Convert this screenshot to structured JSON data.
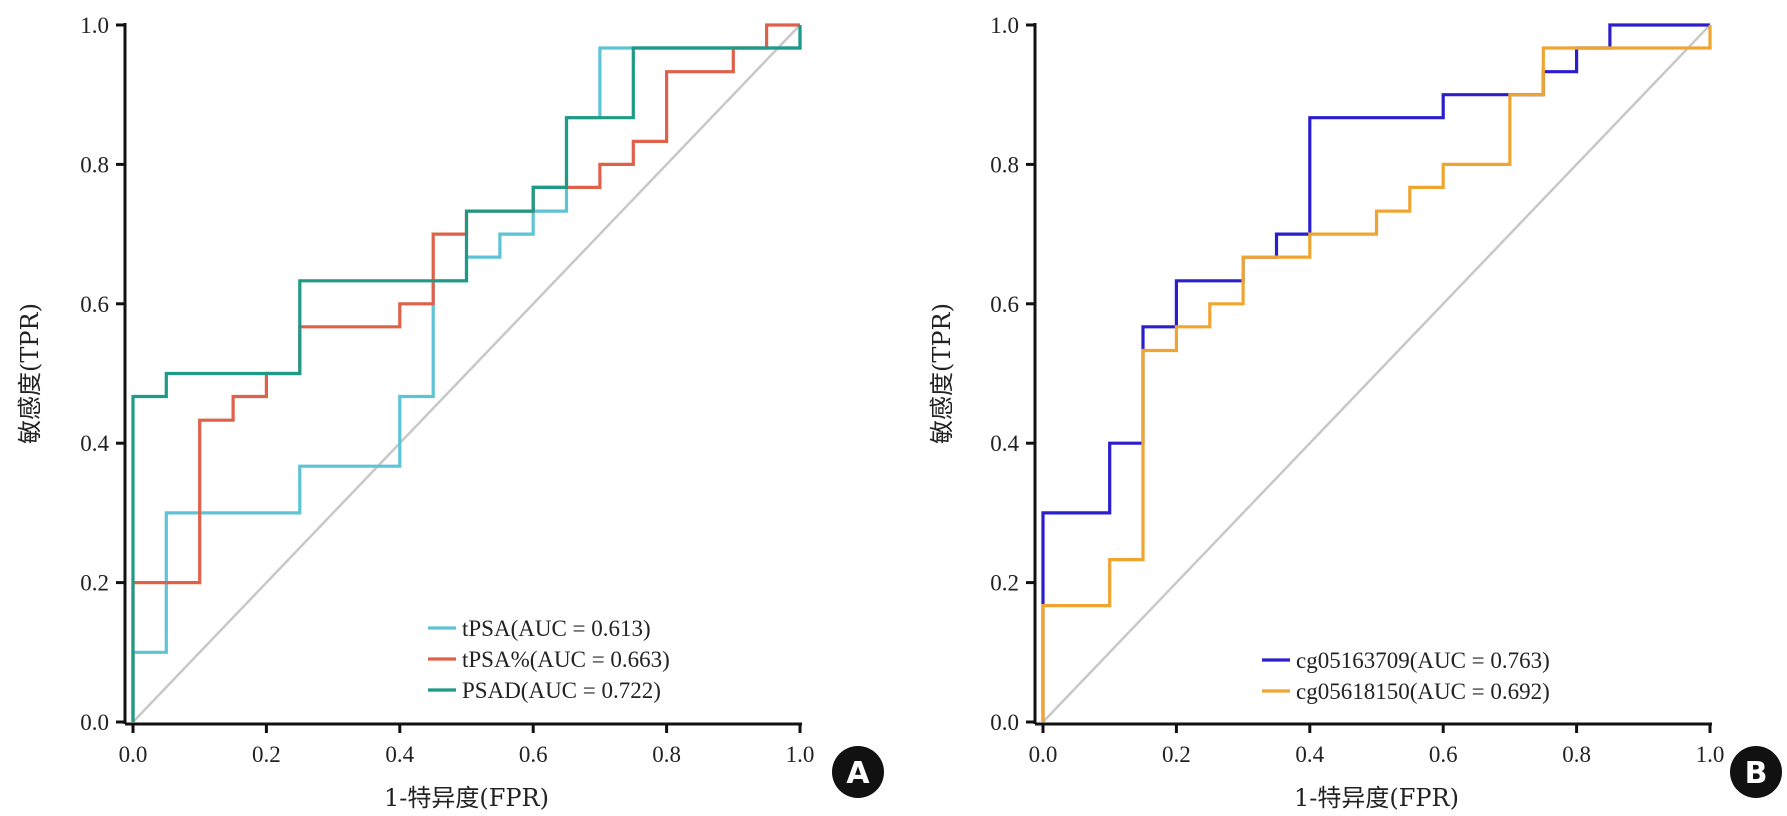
{
  "chart_data": [
    {
      "type": "line",
      "panel_label": "A",
      "xlabel": "1-特异度(FPR)",
      "ylabel": "敏感度(TPR)",
      "xlim": [
        0,
        1
      ],
      "ylim": [
        0,
        1
      ],
      "xticks": [
        "0.0",
        "0.2",
        "0.4",
        "0.6",
        "0.8",
        "1.0"
      ],
      "yticks": [
        "0.0",
        "0.2",
        "0.4",
        "0.6",
        "0.8",
        "1.0"
      ],
      "grid": false,
      "legend_position": "bottom-right",
      "reference_line": {
        "color": "#c8c8c8",
        "points": [
          [
            0,
            0
          ],
          [
            1,
            1
          ]
        ]
      },
      "series": [
        {
          "name": "tPSA(AUC = 0.613)",
          "color": "#5fc3d6",
          "points": [
            [
              0,
              0
            ],
            [
              0,
              0.1
            ],
            [
              0.05,
              0.1
            ],
            [
              0.05,
              0.3
            ],
            [
              0.25,
              0.3
            ],
            [
              0.25,
              0.367
            ],
            [
              0.4,
              0.367
            ],
            [
              0.4,
              0.467
            ],
            [
              0.45,
              0.467
            ],
            [
              0.45,
              0.633
            ],
            [
              0.5,
              0.633
            ],
            [
              0.5,
              0.667
            ],
            [
              0.55,
              0.667
            ],
            [
              0.55,
              0.7
            ],
            [
              0.6,
              0.7
            ],
            [
              0.6,
              0.733
            ],
            [
              0.65,
              0.733
            ],
            [
              0.65,
              0.867
            ],
            [
              0.7,
              0.867
            ],
            [
              0.7,
              0.967
            ],
            [
              1,
              0.967
            ],
            [
              1,
              1
            ]
          ]
        },
        {
          "name": "tPSA%(AUC = 0.663)",
          "color": "#e0614a",
          "points": [
            [
              0,
              0
            ],
            [
              0,
              0.2
            ],
            [
              0.1,
              0.2
            ],
            [
              0.1,
              0.433
            ],
            [
              0.15,
              0.433
            ],
            [
              0.15,
              0.467
            ],
            [
              0.2,
              0.467
            ],
            [
              0.2,
              0.5
            ],
            [
              0.25,
              0.5
            ],
            [
              0.25,
              0.567
            ],
            [
              0.4,
              0.567
            ],
            [
              0.4,
              0.6
            ],
            [
              0.45,
              0.6
            ],
            [
              0.45,
              0.7
            ],
            [
              0.5,
              0.7
            ],
            [
              0.5,
              0.733
            ],
            [
              0.6,
              0.733
            ],
            [
              0.6,
              0.767
            ],
            [
              0.65,
              0.767
            ],
            [
              0.65,
              0.767
            ],
            [
              0.7,
              0.767
            ],
            [
              0.7,
              0.8
            ],
            [
              0.75,
              0.8
            ],
            [
              0.75,
              0.833
            ],
            [
              0.8,
              0.833
            ],
            [
              0.8,
              0.933
            ],
            [
              0.9,
              0.933
            ],
            [
              0.9,
              0.967
            ],
            [
              0.95,
              0.967
            ],
            [
              0.95,
              1
            ],
            [
              1,
              1
            ]
          ]
        },
        {
          "name": "PSAD(AUC = 0.722)",
          "color": "#1e9a86",
          "points": [
            [
              0,
              0
            ],
            [
              0,
              0.467
            ],
            [
              0.05,
              0.467
            ],
            [
              0.05,
              0.5
            ],
            [
              0.25,
              0.5
            ],
            [
              0.25,
              0.633
            ],
            [
              0.5,
              0.633
            ],
            [
              0.5,
              0.733
            ],
            [
              0.6,
              0.733
            ],
            [
              0.6,
              0.767
            ],
            [
              0.65,
              0.767
            ],
            [
              0.65,
              0.867
            ],
            [
              0.75,
              0.867
            ],
            [
              0.75,
              0.967
            ],
            [
              1,
              0.967
            ],
            [
              1,
              1
            ]
          ]
        }
      ]
    },
    {
      "type": "line",
      "panel_label": "B",
      "xlabel": "1-特异度(FPR)",
      "ylabel": "敏感度(TPR)",
      "xlim": [
        0,
        1
      ],
      "ylim": [
        0,
        1
      ],
      "xticks": [
        "0.0",
        "0.2",
        "0.4",
        "0.6",
        "0.8",
        "1.0"
      ],
      "yticks": [
        "0.0",
        "0.2",
        "0.4",
        "0.6",
        "0.8",
        "1.0"
      ],
      "grid": false,
      "legend_position": "bottom-right",
      "reference_line": {
        "color": "#c8c8c8",
        "points": [
          [
            0,
            0
          ],
          [
            1,
            1
          ]
        ]
      },
      "series": [
        {
          "name": "cg05163709(AUC = 0.763)",
          "color": "#2b1fcc",
          "points": [
            [
              0,
              0
            ],
            [
              0,
              0.167
            ],
            [
              0,
              0.3
            ],
            [
              0.1,
              0.3
            ],
            [
              0.1,
              0.4
            ],
            [
              0.15,
              0.4
            ],
            [
              0.15,
              0.567
            ],
            [
              0.2,
              0.567
            ],
            [
              0.2,
              0.633
            ],
            [
              0.3,
              0.633
            ],
            [
              0.3,
              0.667
            ],
            [
              0.35,
              0.667
            ],
            [
              0.35,
              0.7
            ],
            [
              0.4,
              0.7
            ],
            [
              0.4,
              0.867
            ],
            [
              0.6,
              0.867
            ],
            [
              0.6,
              0.9
            ],
            [
              0.75,
              0.9
            ],
            [
              0.75,
              0.933
            ],
            [
              0.8,
              0.933
            ],
            [
              0.8,
              0.967
            ],
            [
              0.85,
              0.967
            ],
            [
              0.85,
              1
            ],
            [
              1,
              1
            ]
          ]
        },
        {
          "name": "cg05618150(AUC = 0.692)",
          "color": "#f0a530",
          "points": [
            [
              0,
              0
            ],
            [
              0,
              0.167
            ],
            [
              0.1,
              0.167
            ],
            [
              0.1,
              0.233
            ],
            [
              0.15,
              0.233
            ],
            [
              0.15,
              0.533
            ],
            [
              0.2,
              0.533
            ],
            [
              0.2,
              0.567
            ],
            [
              0.25,
              0.567
            ],
            [
              0.25,
              0.6
            ],
            [
              0.3,
              0.6
            ],
            [
              0.3,
              0.667
            ],
            [
              0.4,
              0.667
            ],
            [
              0.4,
              0.7
            ],
            [
              0.5,
              0.7
            ],
            [
              0.5,
              0.733
            ],
            [
              0.55,
              0.733
            ],
            [
              0.55,
              0.767
            ],
            [
              0.6,
              0.767
            ],
            [
              0.6,
              0.8
            ],
            [
              0.7,
              0.8
            ],
            [
              0.7,
              0.9
            ],
            [
              0.75,
              0.9
            ],
            [
              0.75,
              0.967
            ],
            [
              1,
              0.967
            ],
            [
              1,
              1
            ]
          ]
        }
      ]
    }
  ]
}
